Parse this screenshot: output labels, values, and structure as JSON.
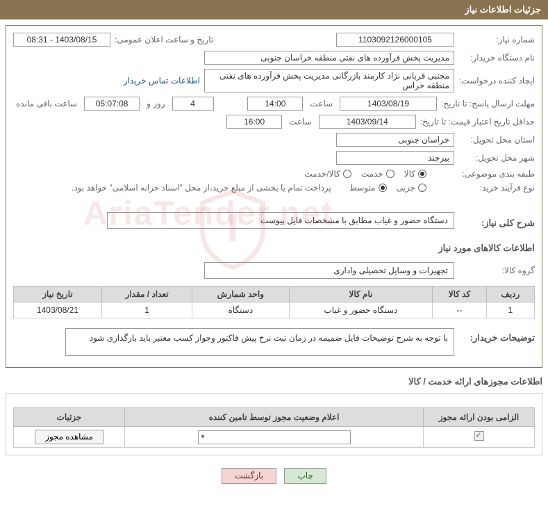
{
  "header": {
    "title": "جزئیات اطلاعات نیاز"
  },
  "labels": {
    "need_number": "شماره نیاز:",
    "announce_datetime": "تاریخ و ساعت اعلان عمومی:",
    "buyer_org": "نام دستگاه خریدار:",
    "requester": "ایجاد کننده درخواست:",
    "contact_link": "اطلاعات تماس خریدار",
    "deadline": "مهلت ارسال پاسخ: تا تاریخ:",
    "time_lbl": "ساعت",
    "days_and": "روز و",
    "time_remaining": "ساعت باقی مانده",
    "validity": "حداقل تاریخ اعتبار قیمت: تا تاریخ:",
    "delivery_province": "استان محل تحویل:",
    "delivery_city": "شهر محل تحویل:",
    "category": "طبقه بندی موضوعی:",
    "purchase_type": "نوع فرآیند خرید:",
    "purchase_note": "پرداخت تمام یا بخشی از مبلغ خرید،از محل \"اسناد خزانه اسلامی\" خواهد بود.",
    "overall_desc": "شرح کلی نیاز:",
    "goods_info": "اطلاعات کالاهای مورد نیاز",
    "goods_group": "گروه کالا:",
    "buyer_notes": "توضیحات خریدار:",
    "permits_title": "اطلاعات مجوزهای ارائه خدمت / کالا"
  },
  "values": {
    "need_number": "1103092126000105",
    "announce_datetime": "1403/08/15 - 08:31",
    "buyer_org": "مدیریت پخش فرآورده های نفتی منطقه خراسان جنوبی",
    "requester": "مجتبی قربانی نژاد کارمند بازرگانی مدیریت پخش فرآورده های نفتی منطقه خراس",
    "deadline_date": "1403/08/19",
    "deadline_time": "14:00",
    "days_remaining": "4",
    "time_remaining": "05:07:08",
    "validity_date": "1403/09/14",
    "validity_time": "16:00",
    "province": "خراسان جنوبی",
    "city": "بیرجند",
    "overall_desc": "دستگاه حضور و غیاب مطابق با مشخصات فایل پیوست",
    "goods_group": "تجهیزات و وسایل تحصیلی واداری",
    "buyer_notes": "با توجه به شرح توضیحات فایل ضمیمه در زمان ثبت نرخ پیش فاکتور وجواز کسب معتبر باید بارگذاری شود"
  },
  "radios": {
    "category": [
      {
        "label": "کالا",
        "checked": true
      },
      {
        "label": "خدمت",
        "checked": false
      },
      {
        "label": "کالا/خدمت",
        "checked": false
      }
    ],
    "purchase_type": [
      {
        "label": "جزیی",
        "checked": false
      },
      {
        "label": "متوسط",
        "checked": true
      }
    ]
  },
  "table": {
    "headers": [
      "ردیف",
      "کد کالا",
      "نام کالا",
      "واحد شمارش",
      "تعداد / مقدار",
      "تاریخ نیاز"
    ],
    "rows": [
      [
        "1",
        "--",
        "دستگاه حضور و غیاب",
        "دستگاه",
        "1",
        "1403/08/21"
      ]
    ]
  },
  "permits_table": {
    "headers": [
      "الزامی بودن ارائه مجوز",
      "اعلام وضعیت مجوز توسط تامین کننده",
      "جزئیات"
    ],
    "view_btn": "مشاهده مجوز"
  },
  "buttons": {
    "print": "چاپ",
    "back": "بازگشت"
  },
  "watermark": "AriaTender.net"
}
